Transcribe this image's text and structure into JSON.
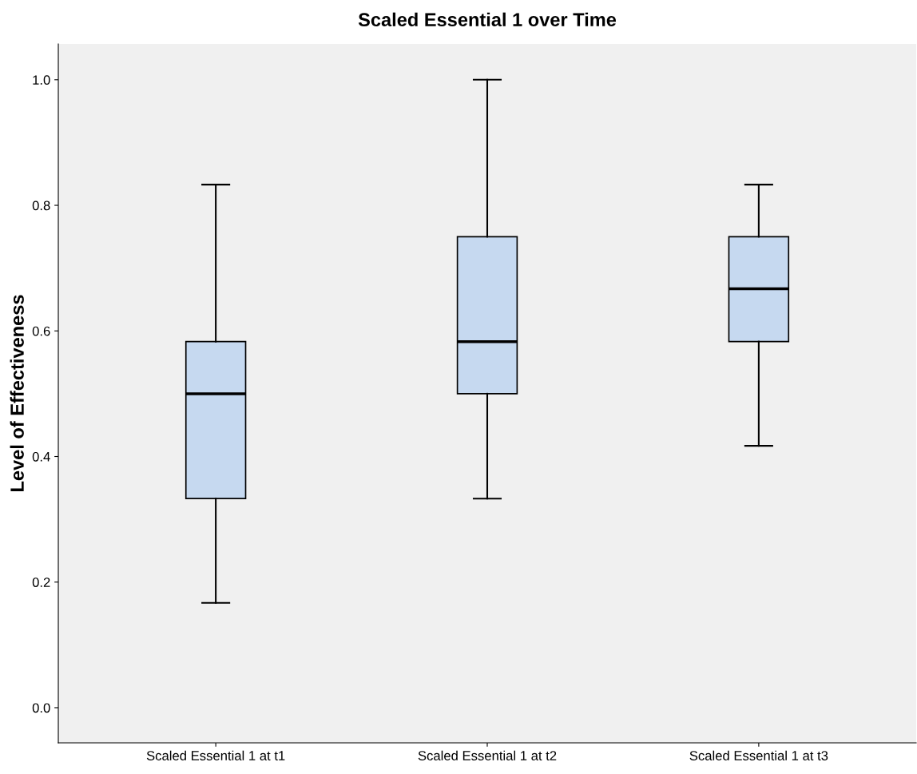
{
  "chart_data": {
    "type": "box",
    "title": "Scaled Essential 1 over Time",
    "ylabel": "Level of Effectiveness",
    "categories": [
      "Scaled Essential 1 at t1",
      "Scaled Essential 1 at t2",
      "Scaled Essential 1 at t3"
    ],
    "boxes": [
      {
        "low": 0.167,
        "q1": 0.333,
        "median": 0.5,
        "q3": 0.583,
        "high": 0.833
      },
      {
        "low": 0.333,
        "q1": 0.5,
        "median": 0.583,
        "q3": 0.75,
        "high": 1.0
      },
      {
        "low": 0.417,
        "q1": 0.583,
        "median": 0.667,
        "q3": 0.75,
        "high": 0.833
      }
    ],
    "color": "#c6d9f0",
    "ylim": [
      -0.056,
      1.057
    ],
    "yticks": [
      {
        "value": 0,
        "label": "0.0"
      },
      0.2,
      0.4,
      0.6,
      0.8,
      {
        "value": 1,
        "label": "1.0"
      }
    ],
    "grid": false
  }
}
